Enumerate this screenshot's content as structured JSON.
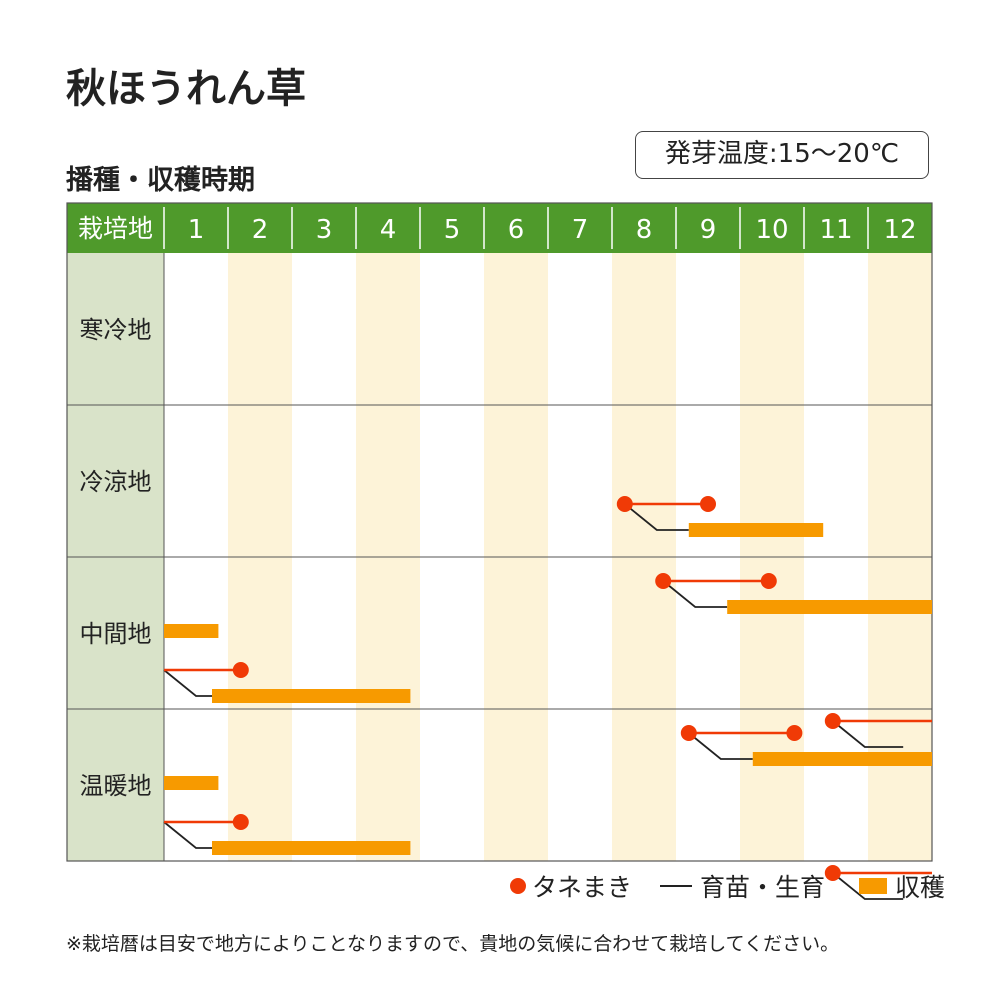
{
  "header": {
    "title": "秋ほうれん草",
    "subtitle": "播種・収穫時期",
    "germination_temp": "発芽温度:15〜20℃"
  },
  "colors": {
    "header_green": "#4f9a2b",
    "region_bg": "#d9e3c9",
    "even_month_bg": "#fdf3d8",
    "sowing": "#f03a06",
    "growth": "#222222",
    "harvest": "#f79a00"
  },
  "chart_data": {
    "type": "gantt",
    "x_unit": "month",
    "corner_label": "栽培地",
    "months": [
      "1",
      "2",
      "3",
      "4",
      "5",
      "6",
      "7",
      "8",
      "9",
      "10",
      "11",
      "12"
    ],
    "regions": [
      {
        "name": "寒冷地",
        "tracks": []
      },
      {
        "name": "冷涼地",
        "tracks": [
          {
            "sow": [
              8.2,
              9.5
            ],
            "grow": [
              8.2,
              9.2
            ],
            "harvest": [
              9.2,
              11.3
            ]
          }
        ]
      },
      {
        "name": "中間地",
        "tracks": [
          {
            "sow": [
              8.8,
              10.45
            ],
            "grow": [
              8.8,
              9.8
            ],
            "harvest": [
              9.8,
              13.0
            ]
          },
          {
            "harvest": [
              1.0,
              1.85
            ]
          },
          {
            "sow": [
              1.0,
              2.2
            ],
            "grow": [
              1.0,
              1.75
            ],
            "harvest": [
              1.75,
              4.85
            ]
          },
          {
            "sow": [
              11.45,
              13.0
            ],
            "grow": [
              11.45,
              12.55
            ]
          }
        ]
      },
      {
        "name": "温暖地",
        "tracks": [
          {
            "sow": [
              9.2,
              10.85
            ],
            "grow": [
              9.2,
              10.2
            ],
            "harvest": [
              10.2,
              13.0
            ]
          },
          {
            "harvest": [
              1.0,
              1.85
            ]
          },
          {
            "sow": [
              1.0,
              2.2
            ],
            "grow": [
              1.0,
              1.75
            ],
            "harvest": [
              1.75,
              4.85
            ]
          },
          {
            "sow": [
              11.45,
              13.0
            ],
            "grow": [
              11.45,
              12.55
            ]
          }
        ]
      }
    ]
  },
  "legend": {
    "sowing": "タネまき",
    "growth": "育苗・生育",
    "harvest": "収穫"
  },
  "footnote": "※栽培暦は目安で地方によりことなりますので、貴地の気候に合わせて栽培してください。"
}
